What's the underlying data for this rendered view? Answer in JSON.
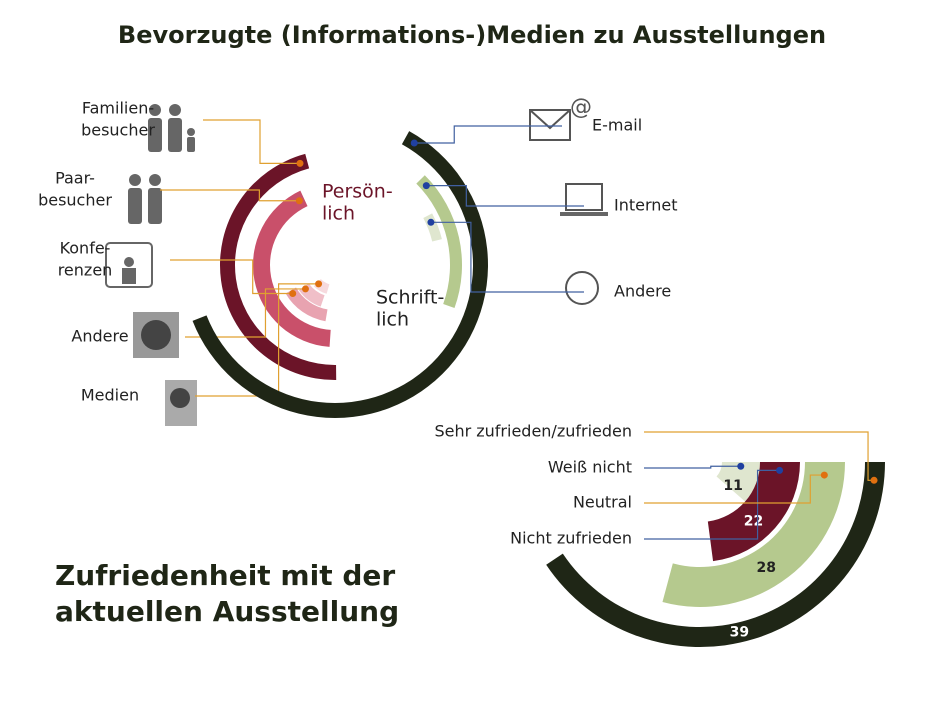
{
  "chart_data": [
    {
      "type": "radial_bar",
      "title": "Bevorzugte (Informations-)Medien zu Ausstellungen",
      "groups": [
        {
          "name": [
            "Persön-",
            "lich"
          ],
          "color": "#6b1428",
          "direction": "counterclockwise",
          "series": [
            {
              "name": [
                "Familien-",
                "besucher"
              ],
              "color": "#6b1428",
              "value": 46
            },
            {
              "name": [
                "Paar-",
                "besucher"
              ],
              "color": "#c9506a",
              "value": 42
            },
            {
              "name": [
                "Konfe-",
                "renzen"
              ],
              "color": "#e8a3b0",
              "value": 14
            },
            {
              "name": [
                "Andere"
              ],
              "color": "#f0bfc8",
              "value": 10
            },
            {
              "name": [
                "Medien"
              ],
              "color": "#f6dade",
              "value": 8
            }
          ]
        },
        {
          "name": [
            "Schrift-",
            "lich"
          ],
          "color": "#222222",
          "direction": "clockwise",
          "series": [
            {
              "name": [
                "E-mail"
              ],
              "color": "#1f2616",
              "value": 61
            },
            {
              "name": [
                "Internet"
              ],
              "color": "#b5c98e",
              "value": 18
            },
            {
              "name": [
                "Andere"
              ],
              "color": "#dfe6cf",
              "value": 4
            }
          ]
        }
      ]
    },
    {
      "type": "radial_bar",
      "title": [
        "Zufriedenheit mit der",
        "aktuellen Ausstellung"
      ],
      "categories": [
        "Weiß nicht",
        "Nicht zufrieden",
        "Neutral",
        "Sehr zufrieden/zufrieden"
      ],
      "values": [
        11,
        22,
        28,
        39
      ],
      "colors": [
        "#dfe6cf",
        "#6b1428",
        "#b5c98e",
        "#1f2616"
      ]
    }
  ]
}
